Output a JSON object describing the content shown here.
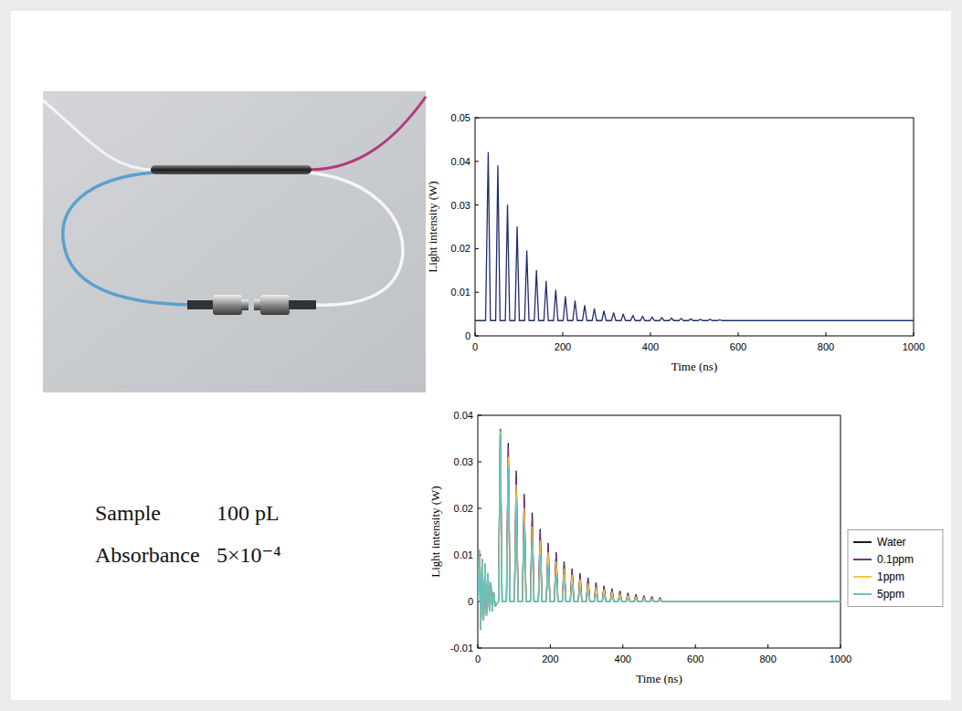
{
  "info": {
    "rows": [
      {
        "label": "Sample",
        "value": "100 pL"
      },
      {
        "label": "Absorbance",
        "value": "5×10⁻⁴"
      }
    ]
  },
  "chart_data": [
    {
      "type": "line",
      "xlabel": "Time (ns)",
      "ylabel": "Light intensity (W)",
      "xlim": [
        0,
        1000
      ],
      "xticks": [
        0,
        200,
        400,
        600,
        800,
        1000
      ],
      "ylim": [
        0,
        0.05
      ],
      "yticks": [
        0,
        0.01,
        0.02,
        0.03,
        0.04,
        0.05
      ],
      "grid": false,
      "x": [
        0,
        24,
        30,
        35,
        47,
        52,
        57,
        69,
        74,
        79,
        91,
        96,
        101,
        113,
        118,
        123,
        135,
        140,
        145,
        157,
        162,
        167,
        179,
        184,
        189,
        201,
        206,
        211,
        223,
        228,
        233,
        245,
        250,
        255,
        267,
        272,
        277,
        289,
        294,
        299,
        311,
        316,
        321,
        333,
        338,
        343,
        355,
        360,
        365,
        377,
        382,
        387,
        399,
        404,
        409,
        421,
        426,
        431,
        443,
        448,
        453,
        465,
        470,
        475,
        487,
        492,
        497,
        509,
        514,
        519,
        531,
        536,
        541,
        553,
        558,
        563,
        1000
      ],
      "series": [
        {
          "color": "#1f2d6e",
          "values": [
            0.0035,
            0.0035,
            0.042,
            0.0035,
            0.0035,
            0.039,
            0.0035,
            0.0035,
            0.03,
            0.0035,
            0.0035,
            0.025,
            0.0035,
            0.0035,
            0.0195,
            0.0035,
            0.0035,
            0.015,
            0.0035,
            0.0035,
            0.0125,
            0.0035,
            0.0035,
            0.0105,
            0.0035,
            0.0035,
            0.009,
            0.0035,
            0.0035,
            0.008,
            0.0035,
            0.0035,
            0.007,
            0.0035,
            0.0035,
            0.0062,
            0.0035,
            0.0035,
            0.0057,
            0.0035,
            0.0035,
            0.0053,
            0.0035,
            0.0035,
            0.005,
            0.0035,
            0.0035,
            0.0047,
            0.0035,
            0.0035,
            0.0045,
            0.0035,
            0.0035,
            0.0043,
            0.0035,
            0.0035,
            0.0042,
            0.0035,
            0.0035,
            0.0041,
            0.0035,
            0.0035,
            0.004,
            0.0035,
            0.0035,
            0.0039,
            0.0035,
            0.0035,
            0.0038,
            0.0035,
            0.0035,
            0.0038,
            0.0035,
            0.0035,
            0.0037,
            0.0035,
            0.0035
          ]
        }
      ]
    },
    {
      "type": "line",
      "xlabel": "Time (ns)",
      "ylabel": "Light intensity (W)",
      "xlim": [
        0,
        1000
      ],
      "xticks": [
        0,
        200,
        400,
        600,
        800,
        1000
      ],
      "ylim": [
        -0.01,
        0.04
      ],
      "yticks": [
        -0.01,
        0,
        0.01,
        0.02,
        0.03,
        0.04
      ],
      "grid": false,
      "legend": "right",
      "x": [
        0,
        4,
        8,
        12,
        16,
        20,
        24,
        28,
        32,
        36,
        40,
        44,
        48,
        57,
        62,
        67,
        79,
        84,
        89,
        101,
        106,
        111,
        123,
        128,
        133,
        145,
        150,
        155,
        167,
        172,
        177,
        189,
        194,
        199,
        211,
        216,
        221,
        233,
        238,
        243,
        255,
        260,
        265,
        277,
        282,
        287,
        299,
        304,
        309,
        321,
        326,
        331,
        343,
        348,
        353,
        365,
        370,
        375,
        387,
        392,
        397,
        409,
        414,
        419,
        431,
        436,
        441,
        453,
        458,
        463,
        475,
        480,
        485,
        497,
        502,
        507,
        1000
      ],
      "series": [
        {
          "name": "Water",
          "color": "#1a1a1a",
          "values": [
            0,
            0.011,
            -0.006,
            0.009,
            -0.004,
            0.008,
            -0.003,
            0.006,
            -0.002,
            0.004,
            -0.002,
            0.002,
            -0.001,
            0,
            0.037,
            0,
            0,
            0.034,
            0,
            0,
            0.028,
            0,
            0,
            0.023,
            0,
            0,
            0.019,
            0,
            0,
            0.0155,
            0,
            0,
            0.0125,
            0,
            0,
            0.0105,
            0,
            0,
            0.0085,
            0,
            0,
            0.007,
            0,
            0,
            0.006,
            0,
            0,
            0.005,
            0,
            0,
            0.004,
            0,
            0,
            0.0033,
            0,
            0,
            0.0027,
            0,
            0,
            0.0022,
            0,
            0,
            0.0018,
            0,
            0,
            0.0015,
            0,
            0,
            0.0012,
            0,
            0,
            0.001,
            0,
            0,
            0.0008,
            0,
            0
          ]
        },
        {
          "name": "0.1ppm",
          "color": "#7b2f8e",
          "values": [
            0,
            0.011,
            -0.006,
            0.009,
            -0.004,
            0.008,
            -0.003,
            0.006,
            -0.002,
            0.004,
            -0.002,
            0.002,
            -0.001,
            0,
            0.037,
            0,
            0,
            0.033,
            0,
            0,
            0.027,
            0,
            0,
            0.022,
            0,
            0,
            0.018,
            0,
            0,
            0.015,
            0,
            0,
            0.012,
            0,
            0,
            0.01,
            0,
            0,
            0.008,
            0,
            0,
            0.0067,
            0,
            0,
            0.0056,
            0,
            0,
            0.0047,
            0,
            0,
            0.0038,
            0,
            0,
            0.0031,
            0,
            0,
            0.0025,
            0,
            0,
            0.002,
            0,
            0,
            0.0016,
            0,
            0,
            0.0013,
            0,
            0,
            0.0011,
            0,
            0,
            0.0009,
            0,
            0,
            0.0007,
            0,
            0
          ]
        },
        {
          "name": "1ppm",
          "color": "#f5c842",
          "values": [
            0,
            0.011,
            -0.006,
            0.009,
            -0.004,
            0.008,
            -0.003,
            0.006,
            -0.002,
            0.004,
            -0.002,
            0.002,
            -0.001,
            0,
            0.0365,
            0,
            0,
            0.031,
            0,
            0,
            0.025,
            0,
            0,
            0.02,
            0,
            0,
            0.016,
            0,
            0,
            0.013,
            0,
            0,
            0.0105,
            0,
            0,
            0.0085,
            0,
            0,
            0.007,
            0,
            0,
            0.0057,
            0,
            0,
            0.0047,
            0,
            0,
            0.0038,
            0,
            0,
            0.0031,
            0,
            0,
            0.0025,
            0,
            0,
            0.002,
            0,
            0,
            0.0016,
            0,
            0,
            0.0013,
            0,
            0,
            0.001,
            0,
            0,
            0.0008,
            0,
            0,
            0.0006,
            0,
            0,
            0.0005,
            0,
            0
          ]
        },
        {
          "name": "5ppm",
          "color": "#5cc8c8",
          "values": [
            0,
            0.011,
            -0.006,
            0.009,
            -0.004,
            0.008,
            -0.003,
            0.006,
            -0.002,
            0.004,
            -0.002,
            0.002,
            -0.001,
            0,
            0.036,
            0,
            0,
            0.029,
            0,
            0,
            0.022,
            0,
            0,
            0.017,
            0,
            0,
            0.013,
            0,
            0,
            0.01,
            0,
            0,
            0.0078,
            0,
            0,
            0.006,
            0,
            0,
            0.0047,
            0,
            0,
            0.0036,
            0,
            0,
            0.0028,
            0,
            0,
            0.0022,
            0,
            0,
            0.0017,
            0,
            0,
            0.0013,
            0,
            0,
            0.001,
            0,
            0,
            0.0008,
            0,
            0,
            0.0006,
            0,
            0,
            0.0005,
            0,
            0,
            0.0004,
            0,
            0,
            0.0003,
            0,
            0,
            0.0002,
            0,
            0
          ]
        }
      ]
    }
  ]
}
